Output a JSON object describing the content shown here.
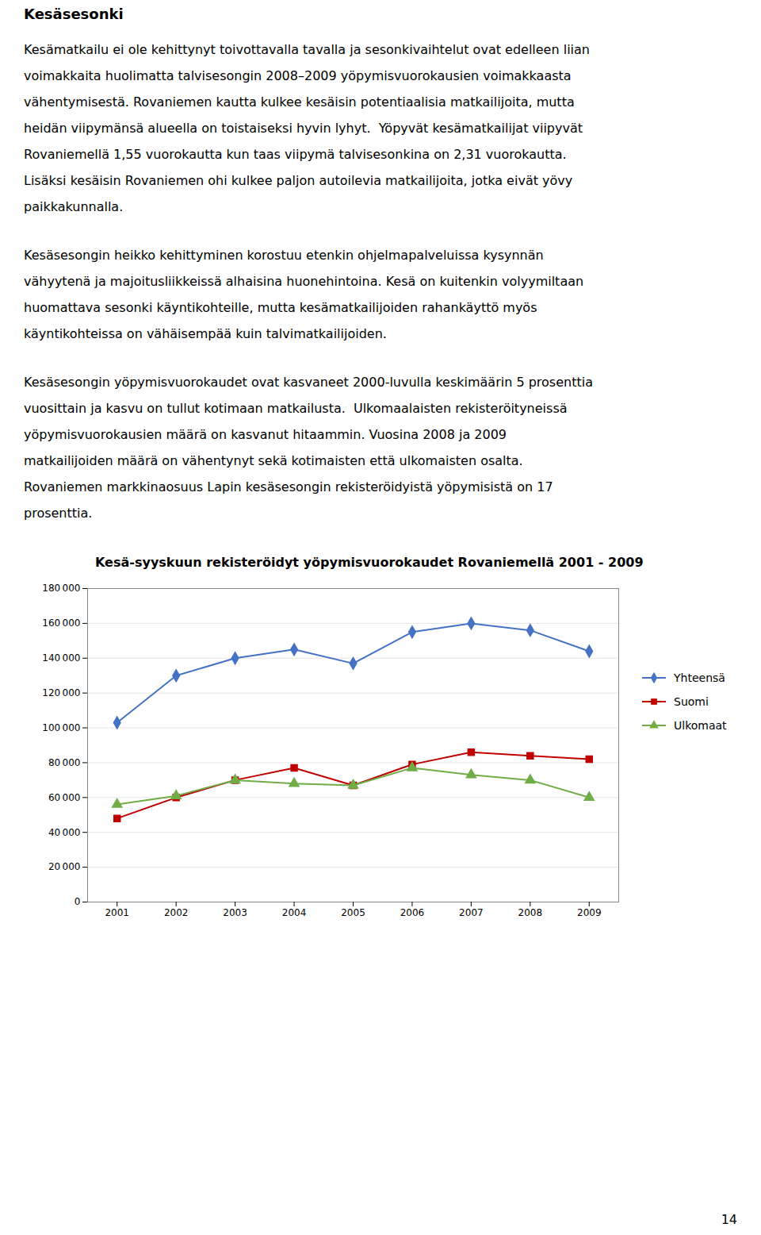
{
  "chart_data": {
    "type": "line",
    "title": "Kesä-syyskuun rekisteröidyt yöpymisvuorokaudet Rovaniemellä 2001 - 2009",
    "annotations": [
      [
        "Kesäsesonki"
      ],
      [
        "Kesämatkailu ei ole kehittynyt toivottavalla tavalla ja sesonkivaihtelut ovat edelleen liian",
        "voimakkaita huolimatta talvisesongin 2008–2009 yöpymisvuorokausien voimakkaasta",
        "vähentymisestä. Rovaniemen kautta kulkee kesäisin potentiaalisia matkailijoita, mutta",
        "heidän viipymänsä alueella on toistaiseksi hyvin lyhyt.  Yöpyvät kesämatkailijat viipyvät",
        "Rovaniemellä 1,55 vuorokautta kun taas viipymä talvisesonkina on 2,31 vuorokautta.",
        "Lisäksi kesäisin Rovaniemen ohi kulkee paljon autoilevia matkailijoita, jotka eivät yövy",
        "paikkakunnalla."
      ],
      [
        "Kesäsesongin heikko kehittyminen korostuu etenkin ohjelmapalveluissa kysynnän",
        "vähyytenä ja majoitusliikkeissä alhaisina huonehintoina. Kesä on kuitenkin volyymiltaan",
        "huomattava sesonki käyntikohteille, mutta kesämatkailijoiden rahankäyttö myös",
        "käyntikohteissa on vähäisempää kuin talvimatkailijoiden."
      ],
      [
        "Kesäsesongin yöpymisvuorokaudet ovat kasvaneet 2000-luvulla keskimäärin 5 prosenttia",
        "vuosittain ja kasvu on tullut kotimaan matkailusta.  Ulkomaalaisten rekisteröityneissä",
        "yöpymisvuorokausien määrä on kasvanut hitaammin. Vuosina 2008 ja 2009",
        "matkailijoiden määrä on vähentynyt sekä kotimaisten että ulkomaisten osalta.",
        "Rovaniemen markkinaosuus Lapin kesäsesongin rekisteröidyistä yöpymisistä on 17",
        "prosenttia."
      ],
      [
        "14"
      ]
    ],
    "x": [
      2001,
      2002,
      2003,
      2004,
      2005,
      2006,
      2007,
      2008,
      2009
    ],
    "series": [
      {
        "name": "Yhteensä",
        "color": "#4472C4",
        "marker": "diamond",
        "values": [
          103000,
          130000,
          140000,
          145000,
          137000,
          155000,
          160000,
          156000,
          144000
        ]
      },
      {
        "name": "Suomi",
        "color": "#C00000",
        "marker": "square",
        "values": [
          48000,
          60000,
          70000,
          77000,
          67000,
          79000,
          86000,
          84000,
          82000
        ]
      },
      {
        "name": "Ulkomaat",
        "color": "#70AD47",
        "marker": "triangle",
        "values": [
          56000,
          61000,
          70000,
          68000,
          67000,
          77000,
          73000,
          70000,
          60000
        ]
      }
    ],
    "xlim": [
      2000.5,
      2009.5
    ],
    "xticks": [
      2001,
      2002,
      2003,
      2004,
      2005,
      2006,
      2007,
      2008,
      2009
    ],
    "ylim": [
      0,
      180000
    ],
    "yticks": [
      0,
      {
        "value": 20000,
        "label": "20 000"
      },
      {
        "value": 40000,
        "label": "40 000"
      },
      {
        "value": 60000,
        "label": "60 000"
      },
      {
        "value": 80000,
        "label": "80 000"
      },
      {
        "value": 100000,
        "label": "100 000"
      },
      {
        "value": 120000,
        "label": "120 000"
      },
      {
        "value": 140000,
        "label": "140 000"
      },
      {
        "value": 160000,
        "label": "160 000"
      },
      {
        "value": 180000,
        "label": "180 000"
      }
    ],
    "grid": true,
    "legend": "right"
  }
}
